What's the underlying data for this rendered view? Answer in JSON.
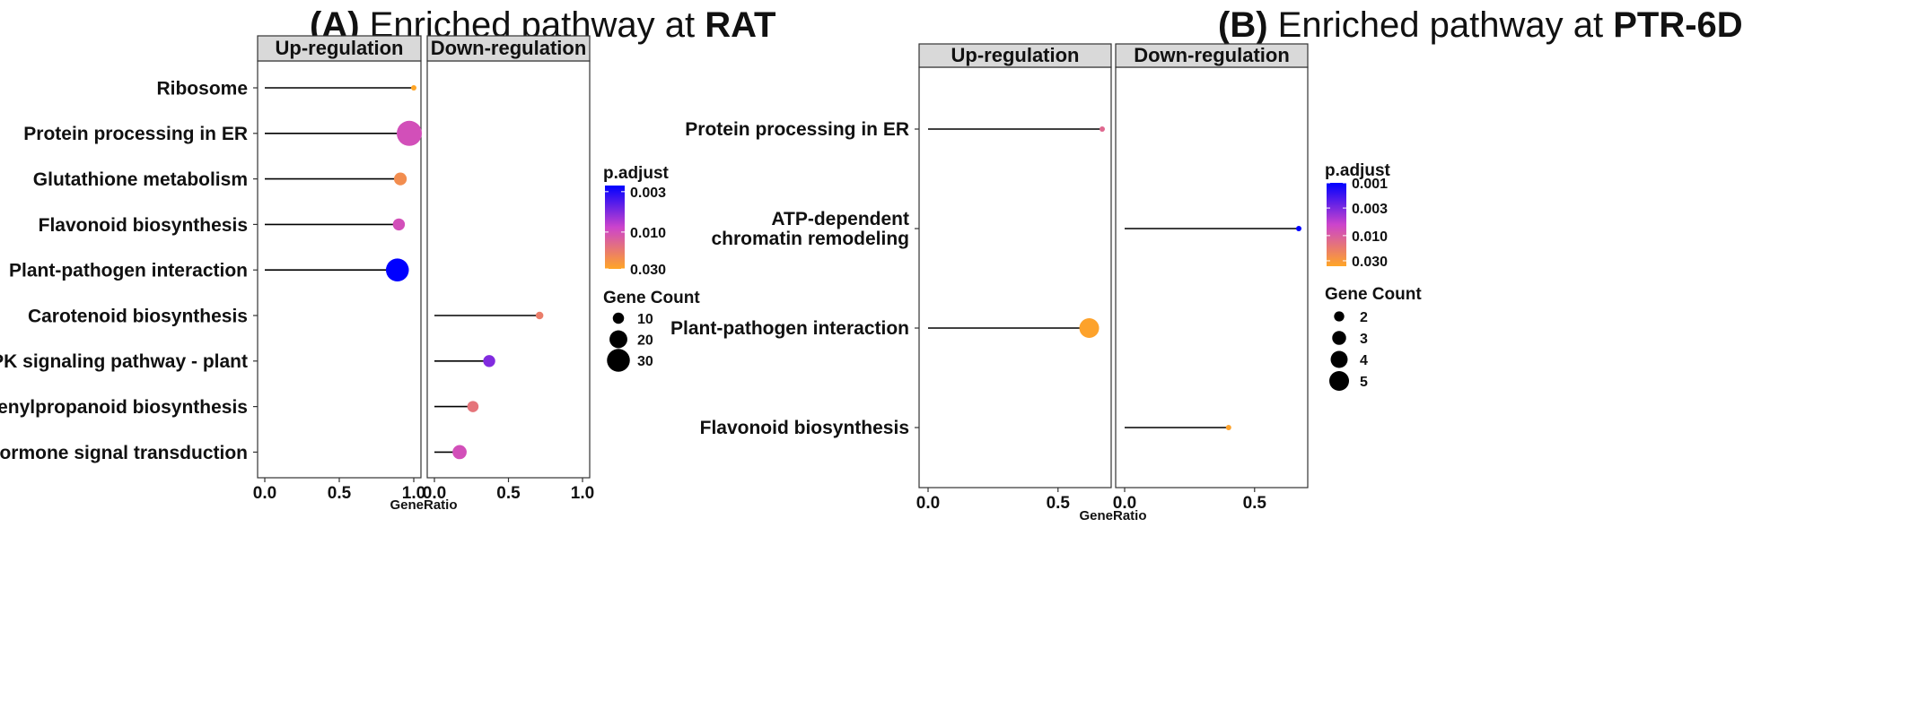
{
  "title_A": {
    "prefix": "(A)",
    "middle": " Enriched pathway at ",
    "bold": "RAT"
  },
  "title_B": {
    "prefix": "(B)",
    "middle": " Enriched pathway at ",
    "bold": "PTR-6D"
  },
  "colors": {
    "strip_fill": "#d9d9d9",
    "low": "#0000ff",
    "mid": "#cc44cc",
    "high": "#ffa526",
    "stick": "#000000"
  },
  "chart_data": [
    {
      "id": "A",
      "type": "scatter",
      "title": "(A) Enriched pathway at RAT",
      "facets": [
        "Up-regulation",
        "Down-regulation"
      ],
      "xlabel": "GeneRatio",
      "xlim": [
        0,
        1
      ],
      "xticks": [
        0.0,
        0.5,
        1.0
      ],
      "xtick_labels": [
        "0.0",
        "0.5",
        "1.0"
      ],
      "categories": [
        "Ribosome",
        "Protein processing in ER",
        "Glutathione metabolism",
        "Flavonoid biosynthesis",
        "Plant-pathogen interaction",
        "Carotenoid biosynthesis",
        "MAPK signaling pathway - plant",
        "Phenylpropanoid biosynthesis",
        "Plant hormone signal transduction"
      ],
      "points": [
        {
          "pathway": "Ribosome",
          "facet": "Up-regulation",
          "gene_ratio": 1.0,
          "p_adjust": 0.03,
          "count": 4
        },
        {
          "pathway": "Protein processing in ER",
          "facet": "Up-regulation",
          "gene_ratio": 0.97,
          "p_adjust": 0.01,
          "count": 35
        },
        {
          "pathway": "Glutathione metabolism",
          "facet": "Up-regulation",
          "gene_ratio": 0.91,
          "p_adjust": 0.022,
          "count": 12
        },
        {
          "pathway": "Flavonoid biosynthesis",
          "facet": "Up-regulation",
          "gene_ratio": 0.9,
          "p_adjust": 0.01,
          "count": 11
        },
        {
          "pathway": "Plant-pathogen interaction",
          "facet": "Up-regulation",
          "gene_ratio": 0.89,
          "p_adjust": 0.0025,
          "count": 30
        },
        {
          "pathway": "Carotenoid biosynthesis",
          "facet": "Down-regulation",
          "gene_ratio": 0.71,
          "p_adjust": 0.018,
          "count": 6
        },
        {
          "pathway": "MAPK signaling pathway - plant",
          "facet": "Down-regulation",
          "gene_ratio": 0.37,
          "p_adjust": 0.0055,
          "count": 11
        },
        {
          "pathway": "Phenylpropanoid biosynthesis",
          "facet": "Down-regulation",
          "gene_ratio": 0.26,
          "p_adjust": 0.016,
          "count": 10
        },
        {
          "pathway": "Plant hormone signal transduction",
          "facet": "Down-regulation",
          "gene_ratio": 0.17,
          "p_adjust": 0.01,
          "count": 14
        }
      ],
      "legend": {
        "color_title": "p.adjust",
        "color_ticks": [
          0.003,
          0.01,
          0.03
        ],
        "color_tick_labels": [
          "0.003",
          "0.010",
          "0.030"
        ],
        "color_range": [
          0.0025,
          0.03
        ],
        "size_title": "Gene Count",
        "size_values": [
          10,
          20,
          30
        ],
        "size_labels": [
          "10",
          "20",
          "30"
        ]
      }
    },
    {
      "id": "B",
      "type": "scatter",
      "title": "(B) Enriched pathway at PTR-6D",
      "facets": [
        "Up-regulation",
        "Down-regulation"
      ],
      "xlabel": "GeneRatio",
      "xlim": [
        0,
        0.67
      ],
      "xticks": [
        0.0,
        0.5
      ],
      "xtick_labels": [
        "0.0",
        "0.5"
      ],
      "categories": [
        "Protein processing in ER",
        "ATP-dependent chromatin remodeling",
        "Plant-pathogen interaction",
        "Flavonoid biosynthesis"
      ],
      "category_lines": [
        [
          "Protein processing in ER"
        ],
        [
          "ATP-dependent",
          "chromatin remodeling"
        ],
        [
          "Plant-pathogen interaction"
        ],
        [
          "Flavonoid biosynthesis"
        ]
      ],
      "points": [
        {
          "pathway": "Protein processing in ER",
          "facet": "Up-regulation",
          "gene_ratio": 0.67,
          "p_adjust": 0.012,
          "count": 1
        },
        {
          "pathway": "ATP-dependent chromatin remodeling",
          "facet": "Down-regulation",
          "gene_ratio": 0.67,
          "p_adjust": 0.001,
          "count": 1
        },
        {
          "pathway": "Plant-pathogen interaction",
          "facet": "Up-regulation",
          "gene_ratio": 0.62,
          "p_adjust": 0.036,
          "count": 5
        },
        {
          "pathway": "Flavonoid biosynthesis",
          "facet": "Down-regulation",
          "gene_ratio": 0.4,
          "p_adjust": 0.036,
          "count": 1
        }
      ],
      "legend": {
        "color_title": "p.adjust",
        "color_ticks": [
          0.001,
          0.003,
          0.01,
          0.03
        ],
        "color_tick_labels": [
          "0.001",
          "0.003",
          "0.010",
          "0.030"
        ],
        "color_range": [
          0.001,
          0.038
        ],
        "size_title": "Gene Count",
        "size_values": [
          2,
          3,
          4,
          5
        ],
        "size_labels": [
          "2",
          "3",
          "4",
          "5"
        ]
      }
    }
  ]
}
